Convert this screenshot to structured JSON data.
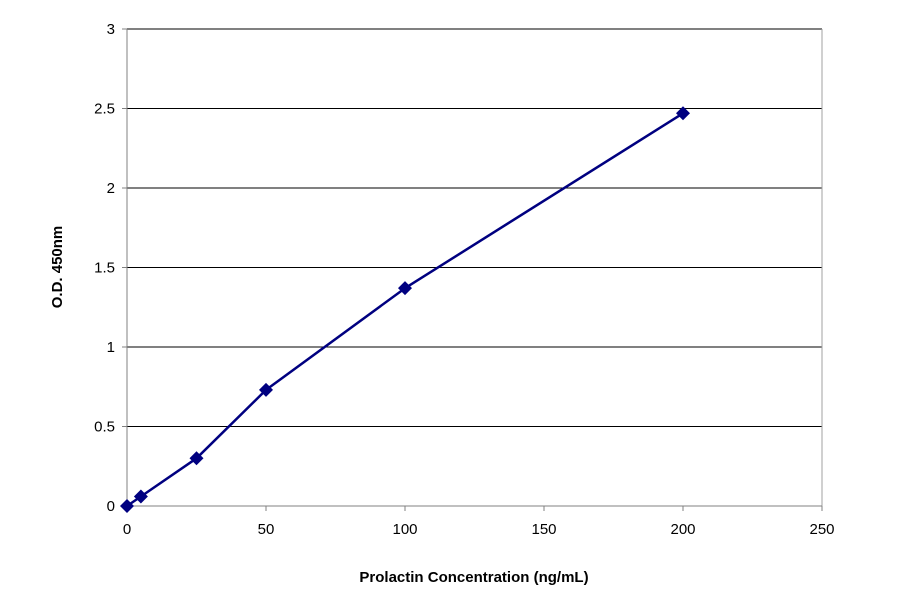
{
  "chart_data": {
    "type": "line",
    "title": "",
    "xlabel": "Prolactin Concentration (ng/mL)",
    "ylabel": "O.D. 450nm",
    "xlim": [
      0,
      250
    ],
    "ylim": [
      0,
      3
    ],
    "x_ticks": [
      0,
      50,
      100,
      150,
      200,
      250
    ],
    "y_ticks": [
      0,
      0.5,
      1,
      1.5,
      2,
      2.5,
      3
    ],
    "x_tick_labels": [
      "0",
      "50",
      "100",
      "150",
      "200",
      "250"
    ],
    "y_tick_labels": [
      "0",
      "0.5",
      "1",
      "1.5",
      "2",
      "2.5",
      "3"
    ],
    "grid": "horizontal",
    "legend": "none",
    "marker": "diamond",
    "color": "#000080",
    "series": [
      {
        "x": [
          0,
          5,
          25,
          50,
          100,
          200
        ],
        "y": [
          0.0,
          0.06,
          0.3,
          0.73,
          1.37,
          2.47
        ]
      }
    ]
  }
}
